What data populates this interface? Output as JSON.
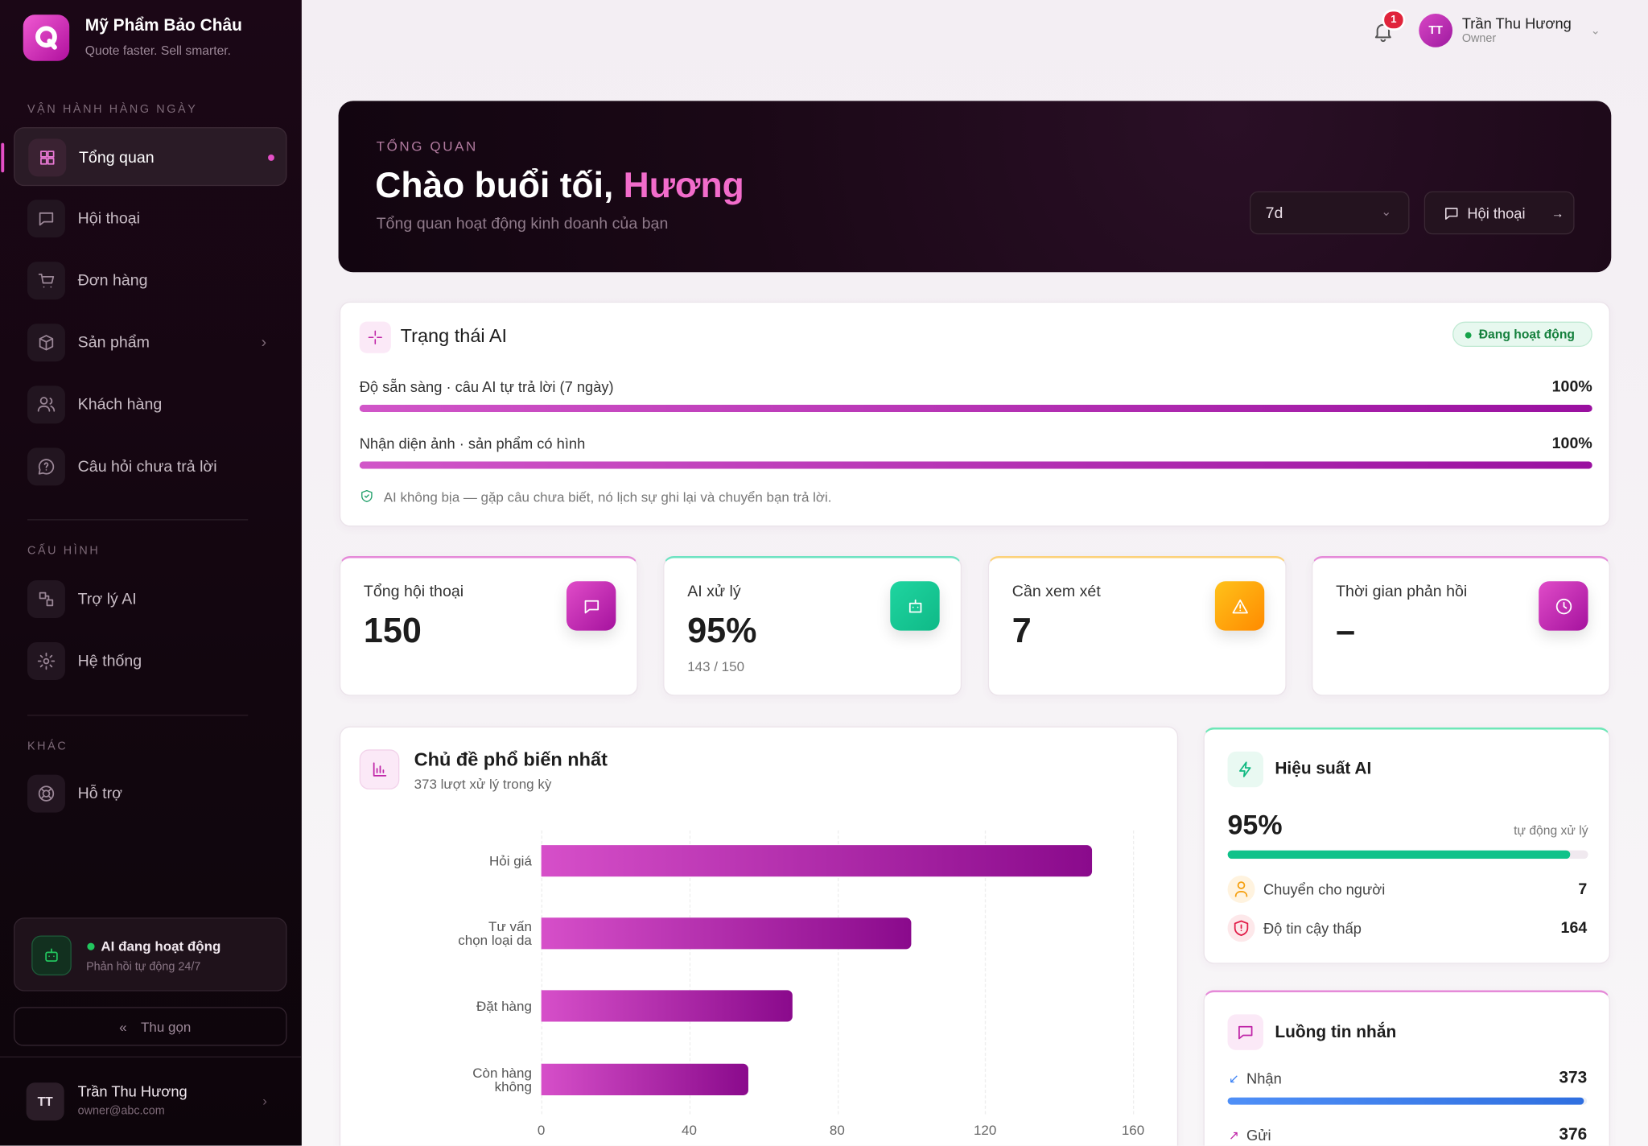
{
  "sidebar": {
    "brand": {
      "name": "Mỹ Phẩm Bảo Châu",
      "tagline": "Quote faster. Sell smarter."
    },
    "sections": [
      {
        "title": "VẬN HÀNH HÀNG NGÀY",
        "items": [
          "Tổng quan",
          "Hội thoại",
          "Đơn hàng",
          "Sản phẩm",
          "Khách hàng",
          "Câu hỏi chưa trả lời"
        ]
      },
      {
        "title": "CẤU HÌNH",
        "items": [
          "Trợ lý AI",
          "Hệ thống"
        ]
      },
      {
        "title": "KHÁC",
        "items": [
          "Hỗ trợ"
        ]
      }
    ],
    "status": {
      "title": "AI đang hoạt động",
      "subtitle": "Phản hồi tự động 24/7"
    },
    "collapse": "Thu gọn",
    "user": {
      "initials": "TT",
      "name": "Trần Thu Hương",
      "email": "owner@abc.com"
    }
  },
  "topbar": {
    "notifications": 1,
    "user": {
      "initials": "TT",
      "name": "Trần Thu Hương",
      "role": "Owner"
    }
  },
  "hero": {
    "eyebrow": "TỔNG QUAN",
    "greeting": "Chào buổi tối,",
    "name": "Hương",
    "subtitle": "Tổng quan hoạt động kinh doanh của bạn",
    "period": "7d",
    "button": "Hội thoại"
  },
  "ai_status": {
    "title": "Trạng thái AI",
    "badge": "Đang hoạt động",
    "metrics": [
      {
        "label": "Độ sẵn sàng · câu AI tự trả lời (7 ngày)",
        "percent": 100,
        "percent_label": "100%"
      },
      {
        "label": "Nhận diện ảnh · sản phẩm có hình",
        "percent": 100,
        "percent_label": "100%"
      }
    ],
    "note": "AI không bịa — gặp câu chưa biết, nó lịch sự ghi lại và chuyển bạn trả lời."
  },
  "kpis": [
    {
      "label": "Tổng hội thoại",
      "value": 150
    },
    {
      "label": "AI xử lý",
      "value": "95%",
      "sub": "143 / 150"
    },
    {
      "label": "Cần xem xét",
      "value": 7
    },
    {
      "label": "Thời gian phản hồi",
      "value": "–"
    }
  ],
  "topics": {
    "title": "Chủ đề phổ biến nhất",
    "subtitle": "373 lượt xử lý trong kỳ",
    "chart_data": {
      "type": "bar",
      "orientation": "horizontal",
      "categories": [
        "Hỏi giá",
        "Tư vấn chọn loại da",
        "Đặt hàng",
        "Còn hàng không"
      ],
      "values": [
        149,
        100,
        68,
        56
      ],
      "xlim": [
        0,
        160
      ],
      "xticks": [
        0,
        40,
        80,
        120,
        160
      ],
      "grid": true,
      "color": [
        "#d64fc9",
        "#8a0a8c"
      ]
    }
  },
  "performance": {
    "title": "Hiệu suất AI",
    "percent": 95,
    "percent_label": "95%",
    "note": "tự động xử lý",
    "rows": [
      {
        "label": "Chuyển cho người",
        "value": 7
      },
      {
        "label": "Độ tin cậy thấp",
        "value": 164
      }
    ]
  },
  "messages": {
    "title": "Luồng tin nhắn",
    "rows": [
      {
        "label": "Nhận",
        "value": 373
      },
      {
        "label": "Gửi",
        "value": 376
      }
    ]
  }
}
